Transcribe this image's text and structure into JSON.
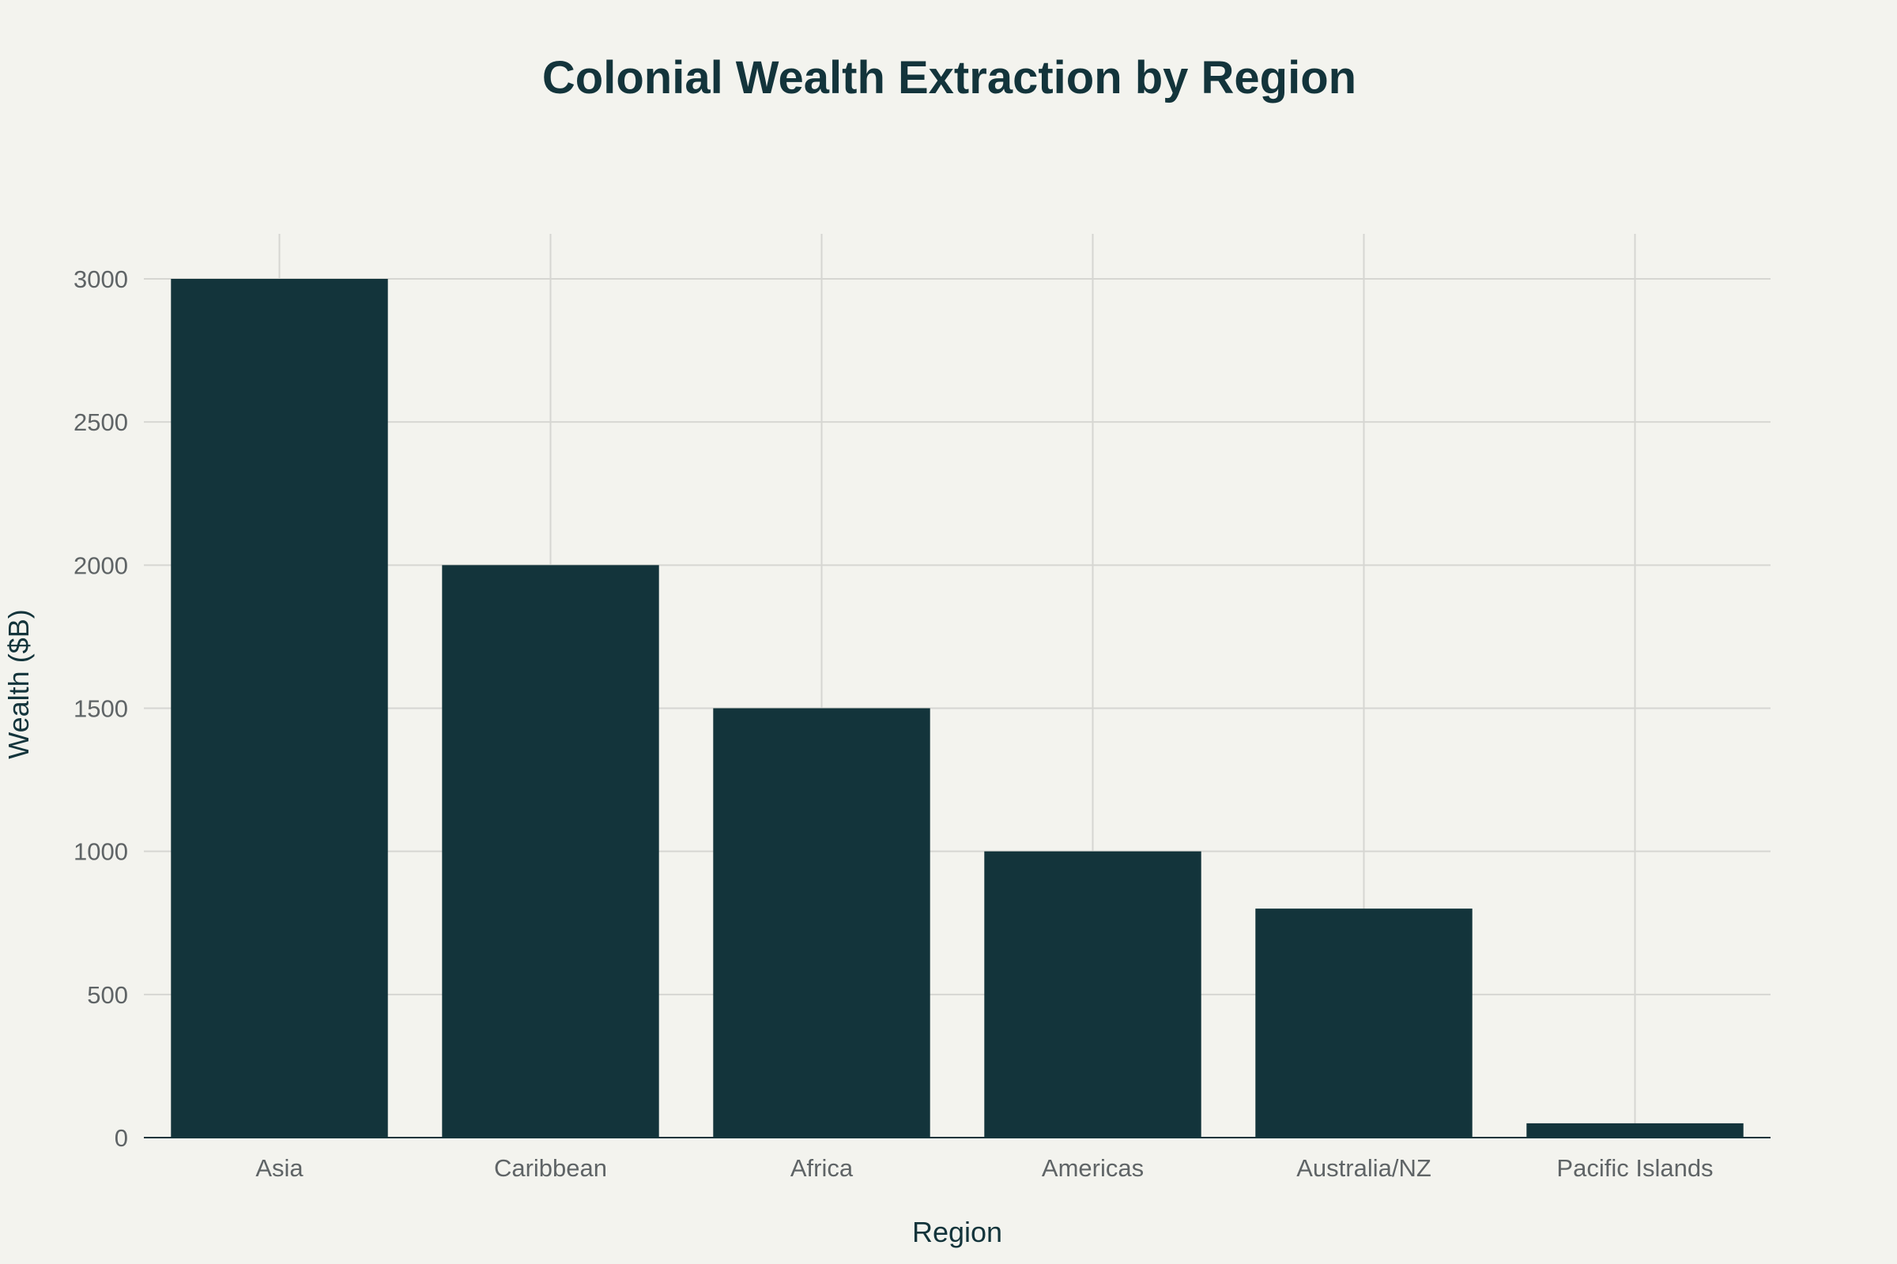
{
  "chart_data": {
    "type": "bar",
    "title": "Colonial Wealth Extraction by Region",
    "xlabel": "Region",
    "ylabel": "Wealth ($B)",
    "categories": [
      "Asia",
      "Caribbean",
      "Africa",
      "Americas",
      "Australia/NZ",
      "Pacific Islands"
    ],
    "values": [
      3000,
      2000,
      1500,
      1000,
      800,
      50
    ],
    "ylim": [
      0,
      3150
    ],
    "yticks": [
      0,
      500,
      1000,
      1500,
      2000,
      2500,
      3000
    ],
    "grid": true,
    "legend": "none",
    "bar_color": "#13343b",
    "background_color": "#f3f3ee"
  }
}
